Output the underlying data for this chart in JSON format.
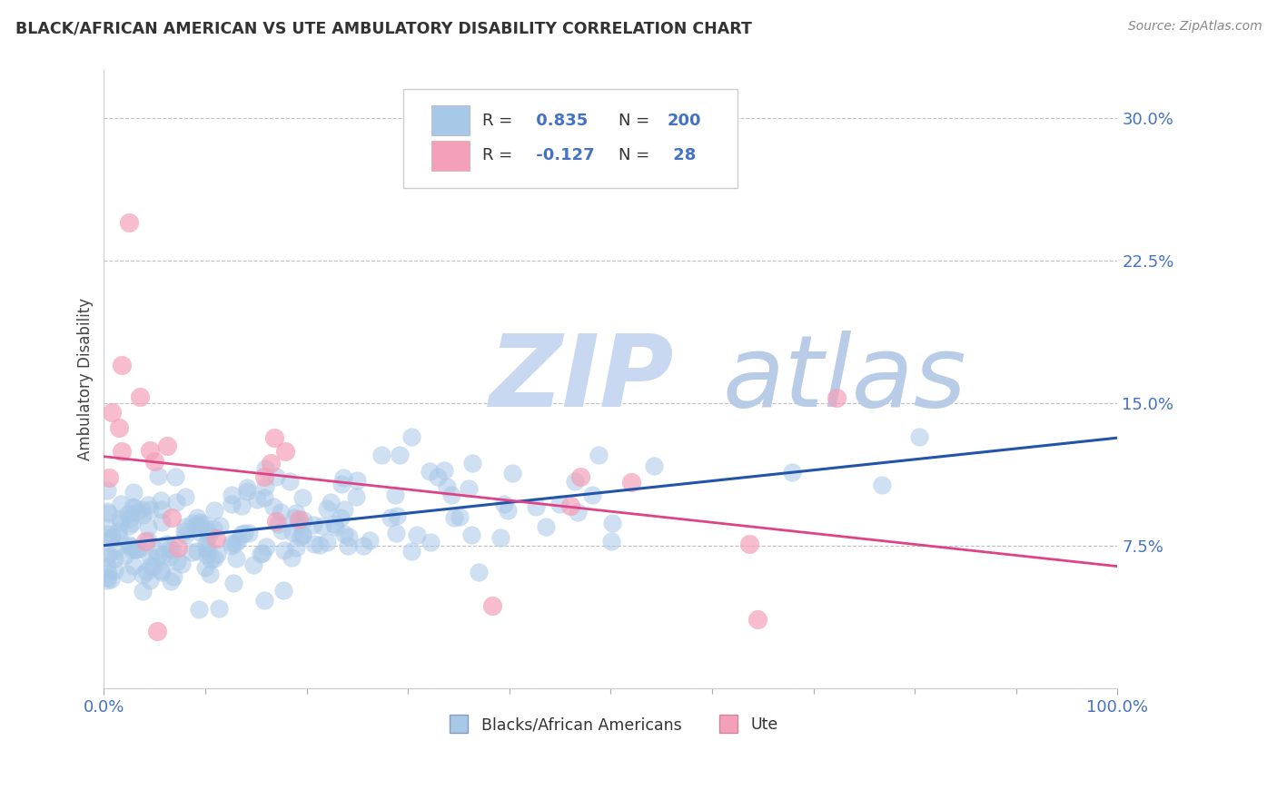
{
  "title": "BLACK/AFRICAN AMERICAN VS UTE AMBULATORY DISABILITY CORRELATION CHART",
  "source_text": "Source: ZipAtlas.com",
  "ylabel": "Ambulatory Disability",
  "watermark_zip": "ZIP",
  "watermark_atlas": "atlas",
  "xlim": [
    0.0,
    100.0
  ],
  "ylim": [
    0.0,
    32.5
  ],
  "yticks": [
    0.0,
    7.5,
    15.0,
    22.5,
    30.0
  ],
  "xticks": [
    0.0,
    100.0
  ],
  "xticklabels": [
    "0.0%",
    "100.0%"
  ],
  "yticklabels": [
    "",
    "7.5%",
    "15.0%",
    "22.5%",
    "30.0%"
  ],
  "blue_R": 0.835,
  "blue_N": 200,
  "pink_R": -0.127,
  "pink_N": 28,
  "blue_scatter_color": "#a8c8e8",
  "pink_scatter_color": "#f4a0b8",
  "blue_line_color": "#2255aa",
  "pink_line_color": "#dd4488",
  "tick_color": "#4472c4",
  "grid_color": "#bbbbbb",
  "background_color": "#ffffff",
  "title_color": "#333333",
  "watermark_zip_color": "#c8d8f0",
  "watermark_atlas_color": "#b8cce8",
  "legend_text_color": "#333333",
  "legend_value_color": "#4472c4",
  "legend_N_blue_color": "#cc0044",
  "source_color": "#888888"
}
